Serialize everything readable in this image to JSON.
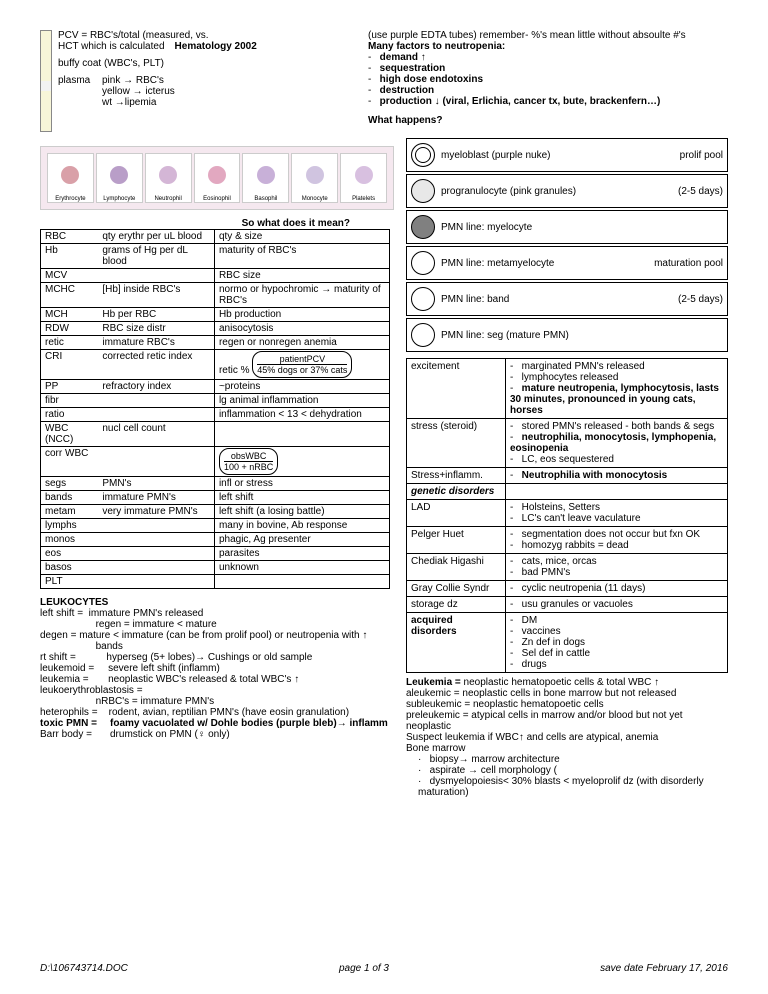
{
  "header": {
    "pcv_line": "PCV = RBC's/total (measured, vs.",
    "hct_line": "HCT which is calculated",
    "title": "Hematology 2002",
    "title_note": "(use purple EDTA tubes)  remember- %'s mean little without absoulte #'s",
    "buffy": "buffy coat (WBC's, PLT)",
    "plasma": "plasma",
    "plasma_lines": [
      "pink → RBC's",
      "yellow → icterus",
      "wt →lipemia"
    ],
    "neutropenia_title": "Many factors to neutropenia:",
    "neutropenia": [
      "demand ↑",
      "sequestration",
      "high dose endotoxins",
      "destruction",
      "production ↓ (viral, Erlichia, cancer tx, bute, brackenfern…)"
    ],
    "what_happens": "What happens?"
  },
  "cells": [
    "Erythrocyte",
    "Lymphocyte",
    "Neutrophil",
    "Eosinophil",
    "Basophil",
    "Monocyte",
    "Platelets"
  ],
  "cell_colors": [
    "#d9a0a8",
    "#b99ec8",
    "#d4b6d6",
    "#e2a8c0",
    "#c8b0d8",
    "#d0c4e0",
    "#d8c0e0"
  ],
  "table_title": "So what does it mean?",
  "main_rows": [
    [
      "RBC",
      "qty erythr per uL blood",
      "qty & size"
    ],
    [
      "Hb",
      "grams of Hg per dL blood",
      "maturity of RBC's"
    ],
    [
      "MCV",
      "",
      "RBC size"
    ],
    [
      "MCHC",
      "[Hb] inside RBC's",
      "normo or hypochromic → maturity of RBC's"
    ],
    [
      "MCH",
      "Hb per RBC",
      "Hb production"
    ],
    [
      "RDW",
      "RBC size distr",
      "anisocytosis"
    ],
    [
      "retic",
      "immature RBC's",
      "regen or nonregen anemia"
    ],
    [
      "CRI",
      "corrected retic index",
      ""
    ],
    [
      "PP",
      "refractory index",
      "~proteins"
    ],
    [
      "fibr",
      "",
      "lg animal inflammation"
    ],
    [
      "ratio",
      "",
      "inflammation < 13 < dehydration"
    ],
    [
      "WBC (NCC)",
      "nucl cell count",
      ""
    ],
    [
      "corr WBC",
      "",
      ""
    ],
    [
      "segs",
      "PMN's",
      "infl or stress"
    ],
    [
      "bands",
      "immature PMN's",
      "left shift"
    ],
    [
      "metam",
      "very immature PMN's",
      "left shift (a losing battle)"
    ],
    [
      "lymphs",
      "",
      "many in bovine, Ab response"
    ],
    [
      "monos",
      "",
      "phagic, Ag presenter"
    ],
    [
      "eos",
      "",
      "parasites"
    ],
    [
      "basos",
      "",
      "unknown"
    ],
    [
      "PLT",
      "",
      ""
    ]
  ],
  "formula1_top": "patientPCV",
  "formula1_pre": "retic %",
  "formula1_bot": "45% dogs or 37% cats",
  "formula2_top": "obsWBC",
  "formula2_bot": "100 + nRBC",
  "leuko": {
    "title": "LEUKOCYTES",
    "lines": [
      "left shift =  immature PMN's released",
      "                    regen = immature < mature",
      "degen = mature < immature (can be from prolif pool) or neutropenia with ↑",
      "                    bands",
      "rt shift =           hyperseg (5+ lobes)→ Cushings or old sample",
      "leukemoid =     severe left shift (inflamm)",
      "leukemia =       neoplastic WBC's released & total WBC's ↑",
      "leukoerythroblastosis =",
      "                    nRBC's = immature PMN's",
      "heterophils =    rodent, avian, reptilian PMN's (have eosin granulation)"
    ],
    "toxic_label": "toxic PMN =",
    "toxic_text": "foamy vacuolated w/ Dohle bodies (purple bleb)→ inflamm",
    "barr_label": "Barr body =",
    "barr_text": "drumstick on PMN (♀ only)"
  },
  "stages": [
    {
      "label": "myeloblast (purple nuke)",
      "right": "prolif pool",
      "fill": "#ffffff",
      "dbl": true
    },
    {
      "label": "progranulocyte (pink granules)",
      "right": "(2-5 days)",
      "fill": "#e8e8e8"
    },
    {
      "label": "PMN line:  myelocyte",
      "right": "",
      "fill": "#808080"
    },
    {
      "label": "PMN line:  metamyelocyte",
      "right": "maturation pool",
      "fill": "#ffffff"
    },
    {
      "label": "PMN line:  band",
      "right": "(2-5 days)",
      "fill": "#ffffff"
    },
    {
      "label": "PMN line:  seg (mature PMN)",
      "right": "",
      "fill": "#ffffff"
    }
  ],
  "disorders": [
    [
      "excitement",
      [
        "marginated PMN's released",
        "lymphocytes released",
        "<b>mature neutropenia, lymphocytosis, lasts 30 minutes, pronounced in young cats, horses</b>"
      ]
    ],
    [
      "stress (steroid)",
      [
        "stored PMN's released - both bands & segs",
        "<b>neutrophilia, monocytosis, lymphopenia, eosinopenia</b>",
        "LC, eos sequestered"
      ]
    ],
    [
      "Stress+inflamm.",
      [
        "<b>Neutrophilia with monocytosis</b>"
      ]
    ],
    [
      "<i><b>genetic disorders</b></i>",
      []
    ],
    [
      "LAD",
      [
        "Holsteins, Setters",
        "LC's can't leave vaculature"
      ]
    ],
    [
      "Pelger Huet",
      [
        "segmentation does not occur but fxn OK",
        "homozyg rabbits = dead"
      ]
    ],
    [
      "Chediak Higashi",
      [
        "cats, mice, orcas",
        "bad PMN's"
      ]
    ],
    [
      "Gray Collie Syndr",
      [
        "cyclic neutropenia (11 days)"
      ]
    ],
    [
      "storage dz",
      [
        "usu granules or vacuoles"
      ]
    ],
    [
      "<b>acquired disorders</b>",
      [
        "DM",
        "vaccines",
        "Zn def in dogs",
        "Sel def in cattle",
        "drugs"
      ]
    ]
  ],
  "leukemia": {
    "title": "Leukemia = ",
    "title_rest": "neoplastic hematopoetic cells & total WBC ↑",
    "lines": [
      "aleukemic = neoplastic cells in bone marrow but not released",
      "subleukemic = neoplastic hematopoetic cells",
      "preleukemic = atypical cells in marrow and/or blood but not yet neoplastic",
      "Suspect leukemia if WBC↑ and cells are atypical, anemia",
      "Bone marrow"
    ],
    "bullets": [
      "biopsy→ marrow architecture",
      "aspirate → cell morphology (",
      "dysmyelopoiesis< 30% blasts < myeloprolif dz (with disorderly maturation)"
    ]
  },
  "footer": {
    "left": "D:\\106743714.DOC",
    "center": "page 1 of 3",
    "right": "save date February 17, 2016"
  }
}
